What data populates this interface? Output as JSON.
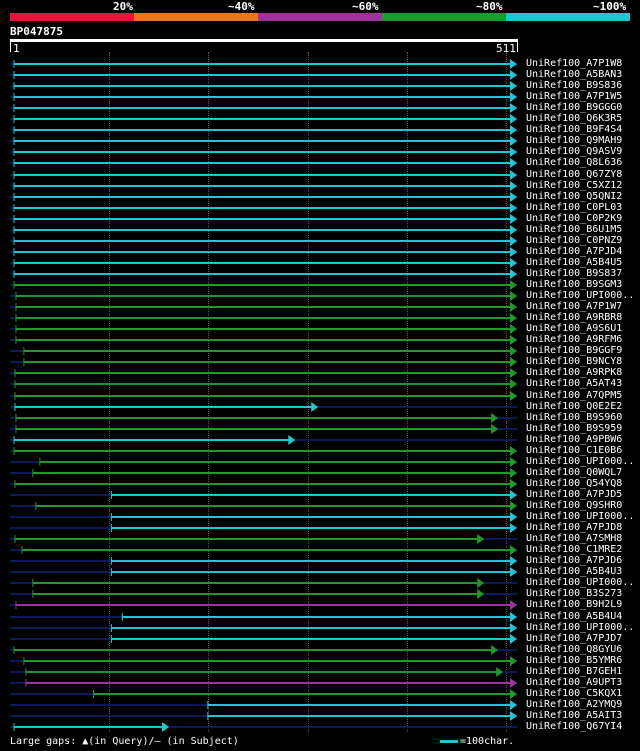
{
  "scale": {
    "labels": [
      "20%",
      "~40%",
      "~60%",
      "~80%",
      "~100%"
    ],
    "colors": [
      "#e8143c",
      "#e8781e",
      "#a0329e",
      "#1e9a28",
      "#1ec8d2"
    ]
  },
  "query": {
    "id": "BP047875",
    "start": "1",
    "end": "511",
    "length": 511
  },
  "colors": {
    "cyan": "#1ec8d2",
    "green": "#1e9a28",
    "purple": "#a0329e",
    "navy": "#0a1a5a"
  },
  "hits": [
    {
      "label": "UniRef100_A7P1W8",
      "s": 5,
      "e": 511,
      "c": "cyan"
    },
    {
      "label": "UniRef100_A5BAN3",
      "s": 5,
      "e": 511,
      "c": "cyan"
    },
    {
      "label": "UniRef100_B9S836",
      "s": 5,
      "e": 511,
      "c": "cyan"
    },
    {
      "label": "UniRef100_A7P1W5",
      "s": 5,
      "e": 511,
      "c": "cyan"
    },
    {
      "label": "UniRef100_B9GGG0",
      "s": 5,
      "e": 511,
      "c": "cyan"
    },
    {
      "label": "UniRef100_Q6K3R5",
      "s": 5,
      "e": 511,
      "c": "cyan"
    },
    {
      "label": "UniRef100_B9F4S4",
      "s": 5,
      "e": 511,
      "c": "cyan"
    },
    {
      "label": "UniRef100_Q9MAH9",
      "s": 5,
      "e": 511,
      "c": "cyan"
    },
    {
      "label": "UniRef100_Q9ASV9",
      "s": 5,
      "e": 511,
      "c": "cyan"
    },
    {
      "label": "UniRef100_Q8L636",
      "s": 5,
      "e": 511,
      "c": "cyan"
    },
    {
      "label": "UniRef100_Q67ZY8",
      "s": 5,
      "e": 511,
      "c": "cyan"
    },
    {
      "label": "UniRef100_C5XZ12",
      "s": 5,
      "e": 511,
      "c": "cyan"
    },
    {
      "label": "UniRef100_Q5QNI2",
      "s": 5,
      "e": 511,
      "c": "cyan"
    },
    {
      "label": "UniRef100_C0PL03",
      "s": 5,
      "e": 511,
      "c": "cyan"
    },
    {
      "label": "UniRef100_C0P2K9",
      "s": 5,
      "e": 511,
      "c": "cyan"
    },
    {
      "label": "UniRef100_B6U1M5",
      "s": 5,
      "e": 511,
      "c": "cyan"
    },
    {
      "label": "UniRef100_C0PNZ9",
      "s": 5,
      "e": 511,
      "c": "cyan"
    },
    {
      "label": "UniRef100_A7PJD4",
      "s": 5,
      "e": 511,
      "c": "cyan"
    },
    {
      "label": "UniRef100_A5B4U5",
      "s": 5,
      "e": 511,
      "c": "cyan"
    },
    {
      "label": "UniRef100_B9S837",
      "s": 5,
      "e": 511,
      "c": "cyan"
    },
    {
      "label": "UniRef100_B9SGM3",
      "s": 5,
      "e": 511,
      "c": "green"
    },
    {
      "label": "UniRef100_UPI000..",
      "s": 7,
      "e": 511,
      "c": "green"
    },
    {
      "label": "UniRef100_A7P1W7",
      "s": 7,
      "e": 511,
      "c": "green"
    },
    {
      "label": "UniRef100_A9RBR8",
      "s": 7,
      "e": 511,
      "c": "green"
    },
    {
      "label": "UniRef100_A9S6U1",
      "s": 7,
      "e": 511,
      "c": "green"
    },
    {
      "label": "UniRef100_A9RFM6",
      "s": 7,
      "e": 511,
      "c": "green"
    },
    {
      "label": "UniRef100_B9GGF9",
      "s": 15,
      "e": 511,
      "c": "green"
    },
    {
      "label": "UniRef100_B9NCY8",
      "s": 15,
      "e": 511,
      "c": "green"
    },
    {
      "label": "UniRef100_A9RPK8",
      "s": 6,
      "e": 511,
      "c": "green"
    },
    {
      "label": "UniRef100_A5AT43",
      "s": 6,
      "e": 511,
      "c": "green"
    },
    {
      "label": "UniRef100_A7QPM5",
      "s": 6,
      "e": 511,
      "c": "green"
    },
    {
      "label": "UniRef100_Q0E2E2",
      "s": 6,
      "e": 311,
      "c": "cyan"
    },
    {
      "label": "UniRef100_B9S960",
      "s": 7,
      "e": 492,
      "c": "green"
    },
    {
      "label": "UniRef100_B9S959",
      "s": 7,
      "e": 492,
      "c": "green"
    },
    {
      "label": "UniRef100_A9PBW6",
      "s": 5,
      "e": 288,
      "c": "cyan"
    },
    {
      "label": "UniRef100_C1E0B6",
      "s": 5,
      "e": 511,
      "c": "green"
    },
    {
      "label": "UniRef100_UPI000..",
      "s": 31,
      "e": 511,
      "c": "green"
    },
    {
      "label": "UniRef100_Q0WQL7",
      "s": 24,
      "e": 511,
      "c": "green"
    },
    {
      "label": "UniRef100_Q54YQ8",
      "s": 6,
      "e": 511,
      "c": "green"
    },
    {
      "label": "UniRef100_A7PJD5",
      "s": 103,
      "e": 511,
      "c": "cyan"
    },
    {
      "label": "UniRef100_Q9SHR0",
      "s": 27,
      "e": 511,
      "c": "green"
    },
    {
      "label": "UniRef100_UPI000..",
      "s": 103,
      "e": 511,
      "c": "cyan"
    },
    {
      "label": "UniRef100_A7PJD8",
      "s": 103,
      "e": 511,
      "c": "cyan"
    },
    {
      "label": "UniRef100_A7SMH8",
      "s": 6,
      "e": 478,
      "c": "green"
    },
    {
      "label": "UniRef100_C1MRE2",
      "s": 13,
      "e": 511,
      "c": "green"
    },
    {
      "label": "UniRef100_A7PJD6",
      "s": 103,
      "e": 511,
      "c": "cyan"
    },
    {
      "label": "UniRef100_A5B4U3",
      "s": 103,
      "e": 511,
      "c": "cyan"
    },
    {
      "label": "UniRef100_UPI000..",
      "s": 24,
      "e": 478,
      "c": "green"
    },
    {
      "label": "UniRef100_B3S273",
      "s": 24,
      "e": 478,
      "c": "green"
    },
    {
      "label": "UniRef100_B9H2L9",
      "s": 7,
      "e": 511,
      "c": "purple"
    },
    {
      "label": "UniRef100_A5B4U4",
      "s": 114,
      "e": 511,
      "c": "cyan"
    },
    {
      "label": "UniRef100_UPI000..",
      "s": 103,
      "e": 511,
      "c": "cyan"
    },
    {
      "label": "UniRef100_A7PJD7",
      "s": 103,
      "e": 511,
      "c": "cyan"
    },
    {
      "label": "UniRef100_Q8GYU6",
      "s": 5,
      "e": 492,
      "c": "green"
    },
    {
      "label": "UniRef100_B5YMR6",
      "s": 15,
      "e": 511,
      "c": "green"
    },
    {
      "label": "UniRef100_B7GEH1",
      "s": 17,
      "e": 497,
      "c": "green"
    },
    {
      "label": "UniRef100_A9UPT3",
      "s": 17,
      "e": 511,
      "c": "purple"
    },
    {
      "label": "UniRef100_C5KQX1",
      "s": 85,
      "e": 511,
      "c": "green"
    },
    {
      "label": "UniRef100_A2YMQ9",
      "s": 200,
      "e": 511,
      "c": "cyan"
    },
    {
      "label": "UniRef100_A5AIT3",
      "s": 200,
      "e": 511,
      "c": "cyan"
    },
    {
      "label": "UniRef100_Q67YI4",
      "s": 5,
      "e": 161,
      "c": "cyan"
    }
  ],
  "footer": {
    "gaps_text": "Large gaps: ▲(in Query)/– (in Subject)",
    "legend_text": "=100char."
  }
}
